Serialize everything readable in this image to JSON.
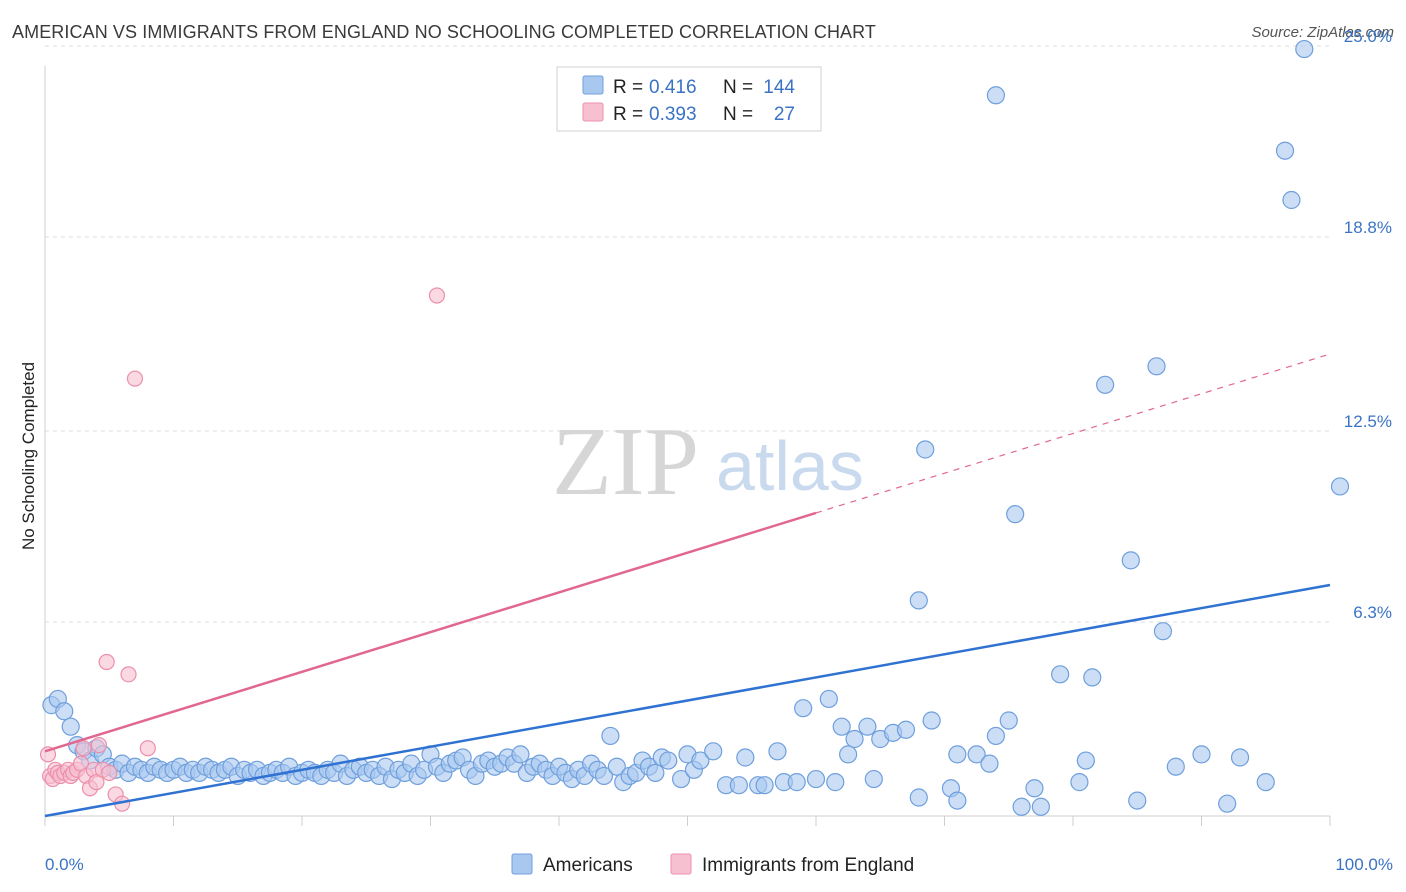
{
  "title": "AMERICAN VS IMMIGRANTS FROM ENGLAND NO SCHOOLING COMPLETED CORRELATION CHART",
  "source": "Source: ZipAtlas.com",
  "watermark": {
    "zip": "ZIP",
    "atlas": "atlas"
  },
  "colors": {
    "americans_fill": "#a9c8f0",
    "americans_stroke": "#6f9fdc",
    "americans_line": "#2f72d2",
    "england_fill": "#f7c0d0",
    "england_stroke": "#ec8fab",
    "england_line": "#e2678f",
    "grid": "#dcdcdc",
    "axis_text": "#3b73c4"
  },
  "legend": {
    "rows": [
      {
        "r_label": "R =",
        "r_value": "0.416",
        "n_label": "N =",
        "n_value": "144"
      },
      {
        "r_label": "R =",
        "r_value": "0.393",
        "n_label": "N =",
        "n_value": "27"
      }
    ]
  },
  "bottom_legend": [
    "Americans",
    "Immigrants from England"
  ],
  "chart_data": {
    "type": "scatter",
    "title": "AMERICAN VS IMMIGRANTS FROM ENGLAND NO SCHOOLING COMPLETED CORRELATION CHART",
    "xlabel": "",
    "ylabel": "No Schooling Completed",
    "xlim": [
      0,
      100
    ],
    "ylim": [
      0,
      26
    ],
    "x_ticks": [
      0,
      100
    ],
    "x_tick_labels": [
      "0.0%",
      "100.0%"
    ],
    "y_ticks": [
      6.3,
      12.5,
      18.8,
      25.0
    ],
    "y_tick_labels": [
      "6.3%",
      "12.5%",
      "18.8%",
      "25.0%"
    ],
    "grid": true,
    "legend_position": "top-center",
    "series": [
      {
        "name": "Americans",
        "r": 0.416,
        "n": 144,
        "trend": {
          "x0": 0,
          "y0": 0,
          "x1": 100,
          "y1": 7.5,
          "dashed_from": null
        },
        "points": [
          [
            0.5,
            3.6
          ],
          [
            1.0,
            3.8
          ],
          [
            1.5,
            3.4
          ],
          [
            2.0,
            2.9
          ],
          [
            2.5,
            2.3
          ],
          [
            3.0,
            2.1
          ],
          [
            3.5,
            1.8
          ],
          [
            4.0,
            2.2
          ],
          [
            4.5,
            2.0
          ],
          [
            5.0,
            1.6
          ],
          [
            5.5,
            1.5
          ],
          [
            6.0,
            1.7
          ],
          [
            6.5,
            1.4
          ],
          [
            7.0,
            1.6
          ],
          [
            7.5,
            1.5
          ],
          [
            8.0,
            1.4
          ],
          [
            8.5,
            1.6
          ],
          [
            9.0,
            1.5
          ],
          [
            9.5,
            1.4
          ],
          [
            10.0,
            1.5
          ],
          [
            10.5,
            1.6
          ],
          [
            11.0,
            1.4
          ],
          [
            11.5,
            1.5
          ],
          [
            12.0,
            1.4
          ],
          [
            12.5,
            1.6
          ],
          [
            13.0,
            1.5
          ],
          [
            13.5,
            1.4
          ],
          [
            14.0,
            1.5
          ],
          [
            14.5,
            1.6
          ],
          [
            15.0,
            1.3
          ],
          [
            15.5,
            1.5
          ],
          [
            16.0,
            1.4
          ],
          [
            16.5,
            1.5
          ],
          [
            17.0,
            1.3
          ],
          [
            17.5,
            1.4
          ],
          [
            18.0,
            1.5
          ],
          [
            18.5,
            1.4
          ],
          [
            19.0,
            1.6
          ],
          [
            19.5,
            1.3
          ],
          [
            20.0,
            1.4
          ],
          [
            20.5,
            1.5
          ],
          [
            21.0,
            1.4
          ],
          [
            21.5,
            1.3
          ],
          [
            22.0,
            1.5
          ],
          [
            22.5,
            1.4
          ],
          [
            23.0,
            1.7
          ],
          [
            23.5,
            1.3
          ],
          [
            24.0,
            1.5
          ],
          [
            24.5,
            1.6
          ],
          [
            25.0,
            1.4
          ],
          [
            25.5,
            1.5
          ],
          [
            26.0,
            1.3
          ],
          [
            26.5,
            1.6
          ],
          [
            27.0,
            1.2
          ],
          [
            27.5,
            1.5
          ],
          [
            28.0,
            1.4
          ],
          [
            28.5,
            1.7
          ],
          [
            29.0,
            1.3
          ],
          [
            29.5,
            1.5
          ],
          [
            30.0,
            2.0
          ],
          [
            30.5,
            1.6
          ],
          [
            31.0,
            1.4
          ],
          [
            31.5,
            1.7
          ],
          [
            32.0,
            1.8
          ],
          [
            32.5,
            1.9
          ],
          [
            33.0,
            1.5
          ],
          [
            33.5,
            1.3
          ],
          [
            34.0,
            1.7
          ],
          [
            34.5,
            1.8
          ],
          [
            35.0,
            1.6
          ],
          [
            35.5,
            1.7
          ],
          [
            36.0,
            1.9
          ],
          [
            36.5,
            1.7
          ],
          [
            37.0,
            2.0
          ],
          [
            37.5,
            1.4
          ],
          [
            38.0,
            1.6
          ],
          [
            38.5,
            1.7
          ],
          [
            39.0,
            1.5
          ],
          [
            39.5,
            1.3
          ],
          [
            40.0,
            1.6
          ],
          [
            40.5,
            1.4
          ],
          [
            41.0,
            1.2
          ],
          [
            41.5,
            1.5
          ],
          [
            42.0,
            1.3
          ],
          [
            42.5,
            1.7
          ],
          [
            43.0,
            1.5
          ],
          [
            43.5,
            1.3
          ],
          [
            44.0,
            2.6
          ],
          [
            44.5,
            1.6
          ],
          [
            45.0,
            1.1
          ],
          [
            45.5,
            1.3
          ],
          [
            46.0,
            1.4
          ],
          [
            46.5,
            1.8
          ],
          [
            47.0,
            1.6
          ],
          [
            47.5,
            1.4
          ],
          [
            48.0,
            1.9
          ],
          [
            48.5,
            1.8
          ],
          [
            49.5,
            1.2
          ],
          [
            50.0,
            2.0
          ],
          [
            50.5,
            1.5
          ],
          [
            51.0,
            1.8
          ],
          [
            52.0,
            2.1
          ],
          [
            53.0,
            1.0
          ],
          [
            54.0,
            1.0
          ],
          [
            54.5,
            1.9
          ],
          [
            55.5,
            1.0
          ],
          [
            56.0,
            1.0
          ],
          [
            57.0,
            2.1
          ],
          [
            57.5,
            1.1
          ],
          [
            58.5,
            1.1
          ],
          [
            59.0,
            3.5
          ],
          [
            60.0,
            1.2
          ],
          [
            61.0,
            3.8
          ],
          [
            61.5,
            1.1
          ],
          [
            62.0,
            2.9
          ],
          [
            62.5,
            2.0
          ],
          [
            63.0,
            2.5
          ],
          [
            64.0,
            2.9
          ],
          [
            64.5,
            1.2
          ],
          [
            65.0,
            2.5
          ],
          [
            66.0,
            2.7
          ],
          [
            67.0,
            2.8
          ],
          [
            68.0,
            0.6
          ],
          [
            68.0,
            7.0
          ],
          [
            68.5,
            11.9
          ],
          [
            69.0,
            3.1
          ],
          [
            70.5,
            0.9
          ],
          [
            71.0,
            0.5
          ],
          [
            71.0,
            2.0
          ],
          [
            72.5,
            2.0
          ],
          [
            73.5,
            1.7
          ],
          [
            74.0,
            2.6
          ],
          [
            74.0,
            23.4
          ],
          [
            75.0,
            3.1
          ],
          [
            75.5,
            9.8
          ],
          [
            76.0,
            0.3
          ],
          [
            77.0,
            0.9
          ],
          [
            77.5,
            0.3
          ],
          [
            79.0,
            4.6
          ],
          [
            80.5,
            1.1
          ],
          [
            81.0,
            1.8
          ],
          [
            81.5,
            4.5
          ],
          [
            82.5,
            14.0
          ],
          [
            84.5,
            8.3
          ],
          [
            85.0,
            0.5
          ],
          [
            86.5,
            14.6
          ],
          [
            87.0,
            6.0
          ],
          [
            88.0,
            1.6
          ],
          [
            90.0,
            2.0
          ],
          [
            92.0,
            0.4
          ],
          [
            93.0,
            1.9
          ],
          [
            95.0,
            1.1
          ],
          [
            96.5,
            21.6
          ],
          [
            97.0,
            20.0
          ],
          [
            98.0,
            24.9
          ],
          [
            103.0,
            10.7
          ]
        ]
      },
      {
        "name": "Immigrants from England",
        "r": 0.393,
        "n": 27,
        "trend": {
          "x0": 0,
          "y0": 2.1,
          "x1": 100,
          "y1": 15.0,
          "dashed_from": 60
        },
        "points": [
          [
            0.2,
            2.0
          ],
          [
            0.4,
            1.3
          ],
          [
            0.6,
            1.2
          ],
          [
            0.8,
            1.5
          ],
          [
            1.0,
            1.4
          ],
          [
            1.2,
            1.3
          ],
          [
            1.5,
            1.4
          ],
          [
            1.8,
            1.5
          ],
          [
            2.0,
            1.3
          ],
          [
            2.2,
            1.4
          ],
          [
            2.5,
            1.5
          ],
          [
            2.8,
            1.7
          ],
          [
            3.0,
            2.2
          ],
          [
            3.2,
            1.3
          ],
          [
            3.5,
            0.9
          ],
          [
            3.8,
            1.5
          ],
          [
            4.0,
            1.1
          ],
          [
            4.2,
            2.3
          ],
          [
            4.5,
            1.5
          ],
          [
            4.8,
            5.0
          ],
          [
            5.0,
            1.4
          ],
          [
            5.5,
            0.7
          ],
          [
            6.0,
            0.4
          ],
          [
            6.5,
            4.6
          ],
          [
            7.0,
            14.2
          ],
          [
            8.0,
            2.2
          ],
          [
            30.5,
            16.9
          ]
        ]
      }
    ]
  }
}
